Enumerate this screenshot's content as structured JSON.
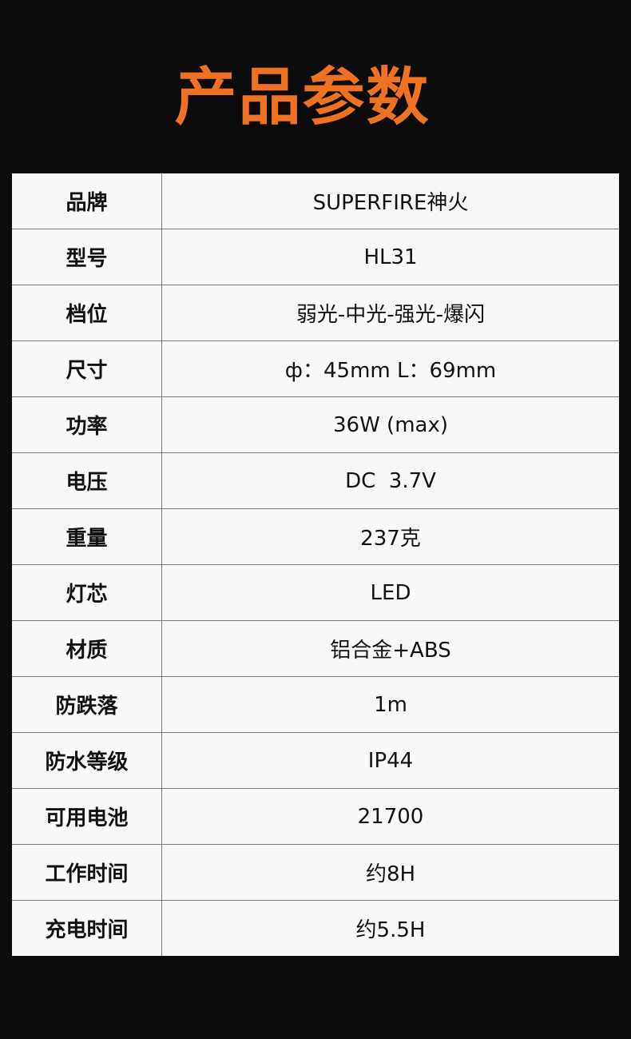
{
  "title": "产品参数",
  "specs": [
    {
      "label": "品牌",
      "value": "SUPERFIRE神火"
    },
    {
      "label": "型号",
      "value": "HL31"
    },
    {
      "label": "档位",
      "value": "弱光-中光-强光-爆闪"
    },
    {
      "label": "尺寸",
      "value": "ф：45mm L：69mm"
    },
    {
      "label": "功率",
      "value": "36W (max)"
    },
    {
      "label": "电压",
      "value": "DC  3.7V"
    },
    {
      "label": "重量",
      "value": "237克"
    },
    {
      "label": "灯芯",
      "value": "LED"
    },
    {
      "label": "材质",
      "value": "铝合金+ABS"
    },
    {
      "label": "防跌落",
      "value": "1m"
    },
    {
      "label": "防水等级",
      "value": "IP44"
    },
    {
      "label": "可用电池",
      "value": "21700"
    },
    {
      "label": "工作时间",
      "value": "约8H"
    },
    {
      "label": "充电时间",
      "value": "约5.5H"
    }
  ],
  "colors": {
    "accent": "#ef7223",
    "background": "#0c0c0c",
    "table": "#f8f8f8"
  }
}
